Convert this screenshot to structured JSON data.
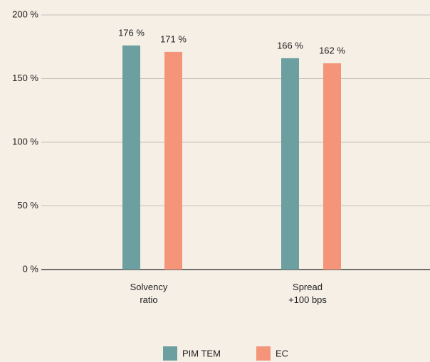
{
  "chart_data": {
    "type": "bar",
    "categories": [
      "Solvency ratio",
      "Spread +100 bps"
    ],
    "series": [
      {
        "name": "PIM TEM",
        "color": "#6b9fa0",
        "values": [
          176,
          166
        ],
        "value_labels": [
          "176 %",
          "166 %"
        ]
      },
      {
        "name": "EC",
        "color": "#f4957a",
        "values": [
          171,
          162
        ],
        "value_labels": [
          "171 %",
          "162 %"
        ]
      }
    ],
    "ylim": [
      0,
      200
    ],
    "yticks": [
      {
        "value": 0,
        "label": "0 %"
      },
      {
        "value": 50,
        "label": "50 %"
      },
      {
        "value": 100,
        "label": "100 %"
      },
      {
        "value": 150,
        "label": "150 %"
      },
      {
        "value": 200,
        "label": "200 %"
      }
    ],
    "grid": true,
    "legend": "bottom"
  }
}
